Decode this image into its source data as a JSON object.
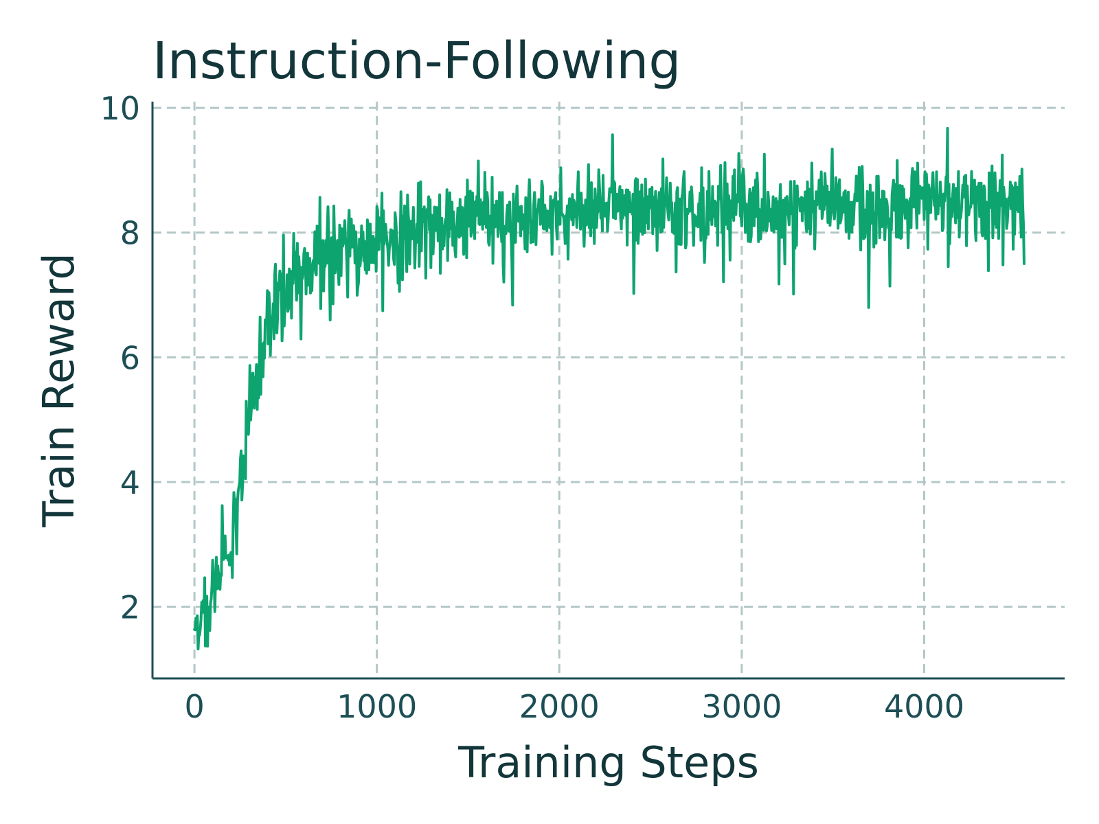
{
  "colors": {
    "series": "#0ea46f",
    "text": "#12363a",
    "grid": "#b4c7c7"
  },
  "chart_data": {
    "type": "line",
    "title": "Instruction-Following",
    "xlabel": "Training Steps",
    "ylabel": "Train Reward",
    "xlim": [
      -230,
      4770
    ],
    "ylim": [
      0.85,
      10.1
    ],
    "xticks": [
      0,
      1000,
      2000,
      3000,
      4000
    ],
    "xtick_labels": [
      "0",
      "1000",
      "2000",
      "3000",
      "4000"
    ],
    "yticks": [
      2,
      4,
      6,
      8,
      10
    ],
    "ytick_labels": [
      "2",
      "4",
      "6",
      "8",
      "10"
    ],
    "grid": true,
    "series": [
      {
        "x": [
          0,
          50,
          100,
          150,
          200,
          250,
          300,
          350,
          400,
          450,
          500,
          550,
          600,
          700,
          800,
          900,
          1000,
          1100,
          1200,
          1300,
          1400,
          1500,
          1600,
          1700,
          1800,
          1900,
          2000,
          2200,
          2400,
          2600,
          2800,
          3000,
          3200,
          3400,
          3600,
          3800,
          4000,
          4200,
          4400,
          4550
        ],
        "y": [
          1.7,
          1.9,
          2.2,
          2.6,
          3.0,
          4.0,
          5.2,
          6.0,
          6.6,
          6.9,
          7.1,
          7.3,
          7.4,
          7.6,
          7.7,
          7.8,
          7.85,
          7.9,
          8.0,
          8.05,
          8.1,
          8.15,
          8.2,
          8.2,
          8.25,
          8.25,
          8.3,
          8.3,
          8.35,
          8.35,
          8.35,
          8.4,
          8.4,
          8.4,
          8.4,
          8.4,
          8.45,
          8.45,
          8.45,
          8.45
        ],
        "spread": [
          0.35,
          0.4,
          0.45,
          0.5,
          0.55,
          0.6,
          0.65,
          0.6,
          0.6,
          0.55,
          0.55,
          0.55,
          0.55,
          0.55,
          0.55,
          0.55,
          0.55,
          0.55,
          0.55,
          0.55,
          0.55,
          0.55,
          0.5,
          0.5,
          0.5,
          0.5,
          0.5,
          0.5,
          0.5,
          0.5,
          0.5,
          0.5,
          0.5,
          0.5,
          0.5,
          0.5,
          0.5,
          0.5,
          0.55,
          0.55
        ]
      }
    ]
  }
}
